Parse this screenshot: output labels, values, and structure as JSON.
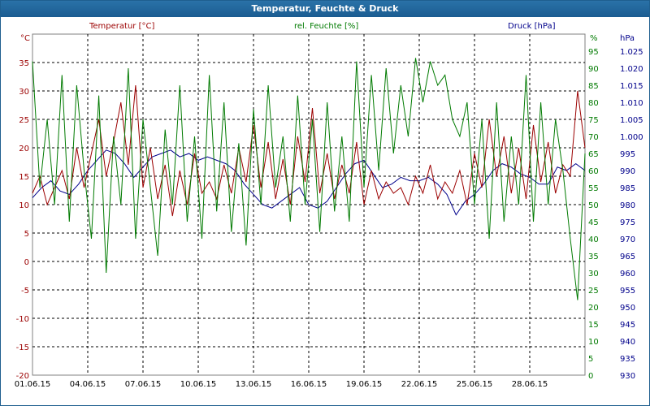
{
  "window": {
    "title": "Temperatur, Feuchte & Druck"
  },
  "chart_data": {
    "type": "line",
    "title": "Temperatur, Feuchte & Druck",
    "x_labels": [
      "01.06.15",
      "04.06.15",
      "07.06.15",
      "10.06.15",
      "13.06.15",
      "16.06.15",
      "19.06.15",
      "22.06.15",
      "25.06.15",
      "28.06.15"
    ],
    "x_range_days": [
      0,
      30
    ],
    "grid": true,
    "axes": {
      "temperature": {
        "label": "Temperatur [°C]",
        "unit": "°C",
        "range": [
          -20,
          40
        ],
        "ticks": [
          -20,
          -15,
          -10,
          -5,
          0,
          5,
          10,
          15,
          20,
          25,
          30,
          35
        ],
        "color": "#9b0000"
      },
      "humidity": {
        "label": "rel. Feuchte [%]",
        "unit": "%",
        "range": [
          0,
          100
        ],
        "ticks": [
          0,
          5,
          10,
          15,
          20,
          25,
          30,
          35,
          40,
          45,
          50,
          55,
          60,
          65,
          70,
          75,
          80,
          85,
          90,
          95
        ],
        "color": "#007a00"
      },
      "pressure": {
        "label": "Druck [hPa]",
        "unit": "hPa",
        "range": [
          930,
          1030
        ],
        "ticks": [
          "930",
          "935",
          "940",
          "945",
          "950",
          "955",
          "960",
          "965",
          "970",
          "975",
          "980",
          "985",
          "990",
          "995",
          "1.000",
          "1.005",
          "1.010",
          "1.015",
          "1.020",
          "1.025"
        ],
        "tick_values": [
          930,
          935,
          940,
          945,
          950,
          955,
          960,
          965,
          970,
          975,
          980,
          985,
          990,
          995,
          1000,
          1005,
          1010,
          1015,
          1020,
          1025
        ],
        "color": "#00008b"
      }
    },
    "series": [
      {
        "name": "Temperatur [°C]",
        "axis": "temperature",
        "color": "#9b0000",
        "x": [
          0,
          0.4,
          0.8,
          1.2,
          1.6,
          2.0,
          2.4,
          2.8,
          3.2,
          3.6,
          4.0,
          4.4,
          4.8,
          5.2,
          5.6,
          6.0,
          6.4,
          6.8,
          7.2,
          7.6,
          8.0,
          8.4,
          8.8,
          9.2,
          9.6,
          10.0,
          10.4,
          10.8,
          11.2,
          11.6,
          12.0,
          12.4,
          12.8,
          13.2,
          13.6,
          14.0,
          14.4,
          14.8,
          15.2,
          15.6,
          16.0,
          16.4,
          16.8,
          17.2,
          17.6,
          18.0,
          18.4,
          18.8,
          19.2,
          19.6,
          20.0,
          20.4,
          20.8,
          21.2,
          21.6,
          22.0,
          22.4,
          22.8,
          23.2,
          23.6,
          24.0,
          24.4,
          24.8,
          25.2,
          25.6,
          26.0,
          26.4,
          26.8,
          27.2,
          27.6,
          28.0,
          28.4,
          28.8,
          29.2,
          29.6,
          30.0
        ],
        "values": [
          12,
          15,
          10,
          13,
          16,
          11,
          20,
          13,
          19,
          25,
          15,
          21,
          28,
          17,
          31,
          13,
          20,
          11,
          17,
          8,
          16,
          10,
          19,
          12,
          14,
          11,
          17,
          12,
          20,
          14,
          24,
          13,
          21,
          11,
          18,
          10,
          22,
          14,
          27,
          12,
          19,
          11,
          17,
          12,
          21,
          10,
          16,
          11,
          14,
          12,
          13,
          10,
          15,
          12,
          17,
          11,
          14,
          12,
          16,
          10,
          19,
          13,
          25,
          15,
          22,
          12,
          20,
          11,
          24,
          14,
          21,
          12,
          17,
          15,
          30,
          20
        ]
      },
      {
        "name": "rel. Feuchte [%]",
        "axis": "humidity",
        "color": "#007a00",
        "x": [
          0,
          0.4,
          0.8,
          1.2,
          1.6,
          2.0,
          2.4,
          2.8,
          3.2,
          3.6,
          4.0,
          4.4,
          4.8,
          5.2,
          5.6,
          6.0,
          6.4,
          6.8,
          7.2,
          7.6,
          8.0,
          8.4,
          8.8,
          9.2,
          9.6,
          10.0,
          10.4,
          10.8,
          11.2,
          11.6,
          12.0,
          12.4,
          12.8,
          13.2,
          13.6,
          14.0,
          14.4,
          14.8,
          15.2,
          15.6,
          16.0,
          16.4,
          16.8,
          17.2,
          17.6,
          18.0,
          18.4,
          18.8,
          19.2,
          19.6,
          20.0,
          20.4,
          20.8,
          21.2,
          21.6,
          22.0,
          22.4,
          22.8,
          23.2,
          23.6,
          24.0,
          24.4,
          24.8,
          25.2,
          25.6,
          26.0,
          26.4,
          26.8,
          27.2,
          27.6,
          28.0,
          28.4,
          28.8,
          29.2,
          29.6,
          30.0
        ],
        "values": [
          92,
          55,
          75,
          50,
          88,
          45,
          85,
          60,
          40,
          82,
          30,
          70,
          50,
          90,
          40,
          75,
          55,
          35,
          72,
          50,
          85,
          45,
          70,
          40,
          88,
          48,
          80,
          42,
          68,
          38,
          78,
          50,
          85,
          55,
          70,
          45,
          82,
          50,
          75,
          42,
          80,
          48,
          70,
          45,
          92,
          55,
          88,
          60,
          90,
          65,
          85,
          70,
          93,
          80,
          92,
          85,
          88,
          75,
          70,
          80,
          50,
          75,
          40,
          80,
          45,
          70,
          50,
          88,
          45,
          80,
          50,
          75,
          60,
          40,
          22,
          65
        ]
      },
      {
        "name": "Druck [hPa]",
        "axis": "pressure",
        "color": "#00008b",
        "x": [
          0,
          0.5,
          1.0,
          1.5,
          2.0,
          2.5,
          3.0,
          3.5,
          4.0,
          4.5,
          5.0,
          5.5,
          6.0,
          6.5,
          7.0,
          7.5,
          8.0,
          8.5,
          9.0,
          9.5,
          10.0,
          10.5,
          11.0,
          11.5,
          12.0,
          12.5,
          13.0,
          13.5,
          14.0,
          14.5,
          15.0,
          15.5,
          16.0,
          16.5,
          17.0,
          17.5,
          18.0,
          18.5,
          19.0,
          19.5,
          20.0,
          20.5,
          21.0,
          21.5,
          22.0,
          22.5,
          23.0,
          23.5,
          24.0,
          24.5,
          25.0,
          25.5,
          26.0,
          26.5,
          27.0,
          27.5,
          28.0,
          28.5,
          29.0,
          29.5,
          30.0
        ],
        "values": [
          982,
          985,
          987,
          984,
          983,
          986,
          990,
          993,
          996,
          995,
          992,
          988,
          991,
          994,
          995,
          996,
          994,
          995,
          993,
          994,
          993,
          992,
          990,
          986,
          983,
          980,
          979,
          981,
          983,
          985,
          980,
          979,
          981,
          985,
          989,
          992,
          993,
          989,
          985,
          986,
          988,
          987,
          987,
          988,
          986,
          983,
          977,
          981,
          983,
          986,
          990,
          992,
          991,
          989,
          988,
          986,
          986,
          991,
          990,
          992,
          990
        ]
      }
    ]
  }
}
